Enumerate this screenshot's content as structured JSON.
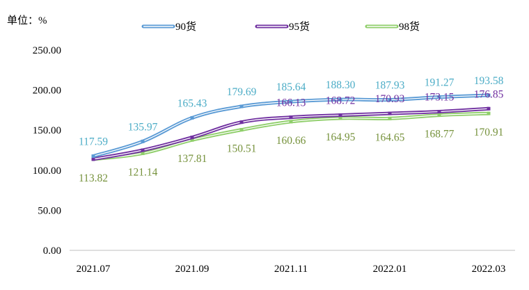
{
  "chart_data": {
    "type": "line",
    "unit_label": "单位：%",
    "categories": [
      "2021.07",
      "2021.08",
      "2021.09",
      "2021.10",
      "2021.11",
      "2021.12",
      "2022.01",
      "2022.02",
      "2022.03"
    ],
    "x_tick_labels": [
      "2021.07",
      "2021.09",
      "2021.11",
      "2022.01",
      "2022.03"
    ],
    "y_ticks": [
      "0.00",
      "50.00",
      "100.00",
      "150.00",
      "200.00",
      "250.00"
    ],
    "ylim": [
      0,
      250
    ],
    "grid": false,
    "legend_position": "top",
    "series": [
      {
        "name": "90货",
        "values": [
          117.59,
          135.97,
          165.43,
          179.69,
          185.64,
          188.3,
          187.93,
          191.27,
          193.58
        ],
        "labels": [
          "117.59",
          "135.97",
          "165.43",
          "179.69",
          "185.64",
          "188.30",
          "187.93",
          "191.27",
          "193.58"
        ],
        "color": "#5b9bd5",
        "label_color": "#4bacc6",
        "label_position": "above"
      },
      {
        "name": "95货",
        "values": [
          113.82,
          125.0,
          141.0,
          160.0,
          166.13,
          168.72,
          170.93,
          173.15,
          176.85
        ],
        "labels": [
          "",
          "",
          "",
          "",
          "166.13",
          "168.72",
          "170.93",
          "173.15",
          "176.85"
        ],
        "color": "#7030a0",
        "label_color": "#7030a0",
        "label_position": "above"
      },
      {
        "name": "98货",
        "values": [
          113.82,
          121.14,
          137.81,
          150.51,
          160.66,
          164.95,
          164.65,
          168.77,
          170.91
        ],
        "labels": [
          "113.82",
          "121.14",
          "137.81",
          "150.51",
          "160.66",
          "164.95",
          "164.65",
          "168.77",
          "170.91"
        ],
        "color": "#8fce6a",
        "label_color": "#76923c",
        "label_position": "below"
      }
    ]
  }
}
